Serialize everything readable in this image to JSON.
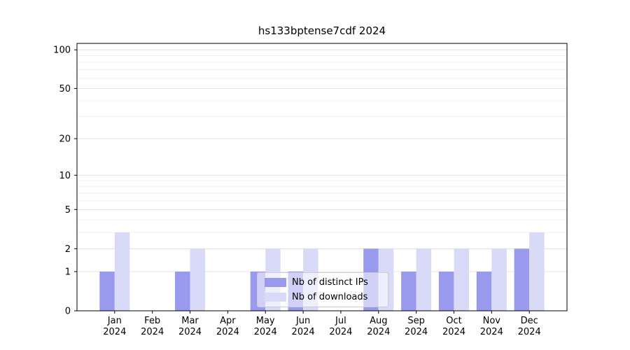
{
  "chart_data": {
    "type": "bar",
    "title": "hs133bptense7cdf 2024",
    "x_categories": [
      "Jan 2024",
      "Feb 2024",
      "Mar 2024",
      "Apr 2024",
      "May 2024",
      "Jun 2024",
      "Jul 2024",
      "Aug 2024",
      "Sep 2024",
      "Oct 2024",
      "Nov 2024",
      "Dec 2024"
    ],
    "series": [
      {
        "name": "Nb of distinct IPs",
        "color": "#9999ee",
        "values": [
          1,
          0,
          1,
          0,
          1,
          1,
          0,
          2,
          1,
          1,
          1,
          2
        ]
      },
      {
        "name": "Nb of downloads",
        "color": "#d9d9f8",
        "values": [
          3,
          0,
          2,
          0,
          2,
          2,
          0,
          2,
          2,
          2,
          2,
          3
        ]
      }
    ],
    "y_axis": {
      "scale": "log1p",
      "ticks": [
        0,
        1,
        2,
        5,
        10,
        20,
        50,
        100
      ],
      "minor_ticks": [
        3,
        4,
        6,
        7,
        8,
        9,
        30,
        40,
        60,
        70,
        80,
        90
      ],
      "max": 110
    },
    "grid": "horizontal",
    "legend": {
      "position": "lower center"
    },
    "colors": {
      "axis": "#000000",
      "major_grid": "#dcdcdc",
      "minor_grid": "#ececec",
      "text": "#000000"
    }
  }
}
